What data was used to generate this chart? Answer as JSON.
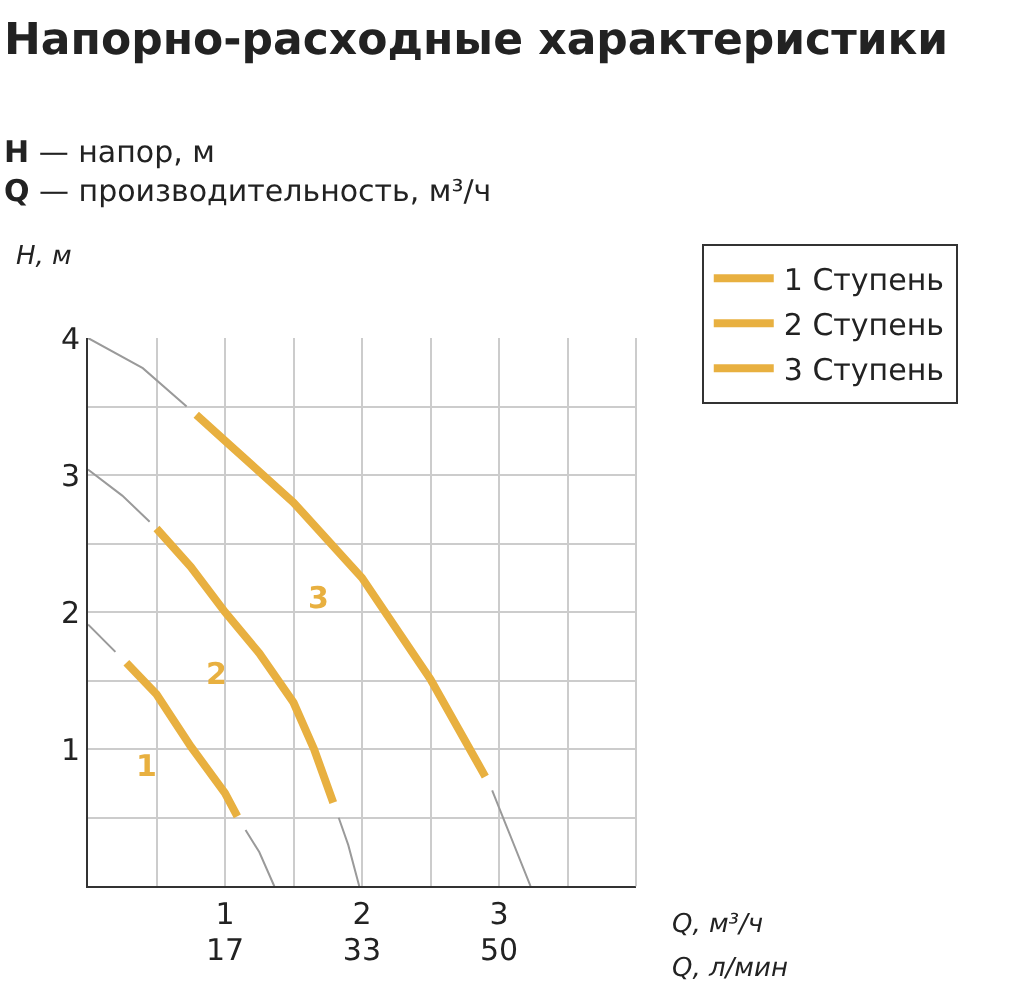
{
  "chart_data": {
    "type": "line",
    "title": "Напорно-расходные характеристики",
    "subtitle": "H — напор, м\nQ — производительность, м³/ч",
    "xlabel": "Q, м³/ч",
    "x2label": "Q, л/мин",
    "ylabel": "H, м",
    "xlim": [
      0,
      4
    ],
    "ylim": [
      0,
      4
    ],
    "xticks": [
      {
        "value": 0,
        "label": null
      },
      {
        "value": 0.5,
        "label": null
      },
      1,
      {
        "value": 1.5,
        "label": null
      },
      2,
      {
        "value": 2.5,
        "label": null
      },
      3,
      {
        "value": 3.5,
        "label": null
      }
    ],
    "x2lim": [
      0,
      66.67
    ],
    "x2ticks": [
      {
        "value": 16.67,
        "label": "17"
      },
      {
        "value": 33.33,
        "label": "33"
      },
      50
    ],
    "yticks": [
      {
        "value": 0,
        "label": null
      },
      {
        "value": 0.5,
        "label": null
      },
      1,
      {
        "value": 1.5,
        "label": null
      },
      2,
      {
        "value": 2.5,
        "label": null
      },
      3,
      {
        "value": 3.5,
        "label": null
      },
      4
    ],
    "grid": true,
    "legend": "top right",
    "marker": "none",
    "series": [
      {
        "color": "#9a9a9a",
        "x": [
          0,
          0.2,
          0.7,
          1.15,
          1.25,
          1.36
        ],
        "values": [
          1.91,
          1.71,
          null,
          0.41,
          0.25,
          0
        ]
      },
      {
        "color": "#9a9a9a",
        "x": [
          0,
          0.25,
          0.45,
          1.2,
          1.83,
          1.9,
          1.98
        ],
        "values": [
          3.04,
          2.85,
          2.66,
          null,
          0.5,
          0.3,
          0
        ]
      },
      {
        "color": "#9a9a9a",
        "x": [
          0,
          0.4,
          0.72,
          1.8,
          2.95,
          3.05,
          3.23
        ],
        "values": [
          4.0,
          3.78,
          3.5,
          null,
          0.7,
          0.45,
          0
        ]
      },
      {
        "name": "1 Ступень",
        "color": "#e8b040",
        "x": [
          0.28,
          0.5,
          0.75,
          1.0,
          1.09
        ],
        "values": [
          1.63,
          1.4,
          1.02,
          0.68,
          0.51
        ]
      },
      {
        "name": "2 Ступень",
        "color": "#e8b040",
        "x": [
          0.5,
          0.75,
          1.0,
          1.25,
          1.5,
          1.65,
          1.79
        ],
        "values": [
          2.61,
          2.33,
          2.0,
          1.7,
          1.34,
          1.0,
          0.61
        ]
      },
      {
        "name": "3 Ступень",
        "color": "#e8b040",
        "x": [
          0.79,
          1.0,
          1.5,
          2.0,
          2.5,
          2.9
        ],
        "values": [
          3.44,
          3.25,
          2.8,
          2.25,
          1.51,
          0.8
        ]
      }
    ],
    "annotations": [
      "1",
      "2",
      "3"
    ]
  }
}
